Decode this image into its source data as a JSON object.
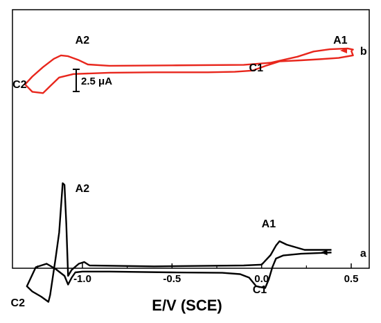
{
  "chart_data": {
    "type": "line",
    "title": "",
    "xlabel": "E/V (SCE)",
    "ylabel": "",
    "xlim": [
      -1.4,
      0.55
    ],
    "xticks": [
      -1.0,
      -0.5,
      0.0,
      0.5
    ],
    "xtick_labels": [
      "-1.0",
      "-0.5",
      "0.0",
      "0.5"
    ],
    "grid": false,
    "scale_bar_label": "2.5 μA",
    "series": [
      {
        "name": "b",
        "color": "#e8261c",
        "points": [
          [
            0.5,
            0.0
          ],
          [
            0.51,
            -0.55
          ],
          [
            0.43,
            -0.85
          ],
          [
            0.32,
            -1.0
          ],
          [
            0.22,
            -1.12
          ],
          [
            0.1,
            -1.25
          ],
          [
            0.03,
            -1.7
          ],
          [
            -0.05,
            -2.3
          ],
          [
            -0.15,
            -2.45
          ],
          [
            -0.3,
            -2.5
          ],
          [
            -0.6,
            -2.5
          ],
          [
            -0.85,
            -2.55
          ],
          [
            -1.05,
            -2.7
          ],
          [
            -1.13,
            -3.1
          ],
          [
            -1.18,
            -4.1
          ],
          [
            -1.22,
            -4.9
          ],
          [
            -1.28,
            -4.75
          ],
          [
            -1.32,
            -3.9
          ],
          [
            -1.28,
            -3.0
          ],
          [
            -1.22,
            -1.9
          ],
          [
            -1.16,
            -0.95
          ],
          [
            -1.12,
            -0.55
          ],
          [
            -1.08,
            -0.65
          ],
          [
            -1.02,
            -1.1
          ],
          [
            -0.97,
            -1.6
          ],
          [
            -0.85,
            -1.75
          ],
          [
            -0.5,
            -1.7
          ],
          [
            -0.1,
            -1.65
          ],
          [
            0.05,
            -1.4
          ],
          [
            0.2,
            -0.7
          ],
          [
            0.29,
            -0.1
          ],
          [
            0.38,
            0.15
          ],
          [
            0.48,
            0.25
          ],
          [
            0.51,
            0.12
          ],
          [
            0.5,
            0.0
          ]
        ]
      },
      {
        "name": "a",
        "color": "#000000",
        "points": [
          [
            0.39,
            -23.3
          ],
          [
            0.33,
            -23.35
          ],
          [
            0.22,
            -23.45
          ],
          [
            0.12,
            -23.65
          ],
          [
            0.08,
            -24.0
          ],
          [
            0.06,
            -25.0
          ],
          [
            0.04,
            -26.4
          ],
          [
            0.02,
            -27.4
          ],
          [
            -0.03,
            -27.2
          ],
          [
            -0.07,
            -26.2
          ],
          [
            -0.12,
            -25.8
          ],
          [
            -0.22,
            -25.65
          ],
          [
            -0.5,
            -25.6
          ],
          [
            -0.85,
            -25.5
          ],
          [
            -1.0,
            -25.5
          ],
          [
            -1.04,
            -25.6
          ],
          [
            -1.06,
            -26.2
          ],
          [
            -1.08,
            -27.0
          ],
          [
            -1.1,
            -26.0
          ],
          [
            -1.15,
            -25.2
          ],
          [
            -1.2,
            -24.6
          ],
          [
            -1.26,
            -25.0
          ],
          [
            -1.31,
            -27.2
          ],
          [
            -1.28,
            -27.8
          ],
          [
            -1.23,
            -28.4
          ],
          [
            -1.19,
            -29.0
          ],
          [
            -1.18,
            -28.2
          ],
          [
            -1.15,
            -24.0
          ],
          [
            -1.13,
            -21.0
          ],
          [
            -1.11,
            -15.3
          ],
          [
            -1.1,
            -15.5
          ],
          [
            -1.09,
            -20.0
          ],
          [
            -1.08,
            -26.0
          ],
          [
            -1.06,
            -25.3
          ],
          [
            -1.02,
            -24.6
          ],
          [
            -0.99,
            -24.4
          ],
          [
            -0.96,
            -24.8
          ],
          [
            -0.6,
            -24.9
          ],
          [
            -0.1,
            -24.8
          ],
          [
            0.0,
            -24.7
          ],
          [
            0.05,
            -23.6
          ],
          [
            0.08,
            -22.5
          ],
          [
            0.1,
            -22.0
          ],
          [
            0.14,
            -22.4
          ],
          [
            0.24,
            -23.0
          ],
          [
            0.39,
            -23.0
          ]
        ]
      }
    ],
    "annotations": [
      {
        "text": "A2",
        "series": "b",
        "x": -1.04,
        "y": 0.8
      },
      {
        "text": "A1",
        "series": "b",
        "x": 0.4,
        "y": 0.8
      },
      {
        "text": "C1",
        "series": "b",
        "x": -0.07,
        "y": -2.4
      },
      {
        "text": "C2",
        "series": "b",
        "x": -1.39,
        "y": -4.3
      },
      {
        "text": "A2",
        "series": "a",
        "x": -1.04,
        "y": -16.3
      },
      {
        "text": "A1",
        "series": "a",
        "x": 0.0,
        "y": -20.4
      },
      {
        "text": "C1",
        "series": "a",
        "x": -0.05,
        "y": -28.0
      },
      {
        "text": "C2",
        "series": "a",
        "x": -1.4,
        "y": -29.5
      }
    ]
  }
}
